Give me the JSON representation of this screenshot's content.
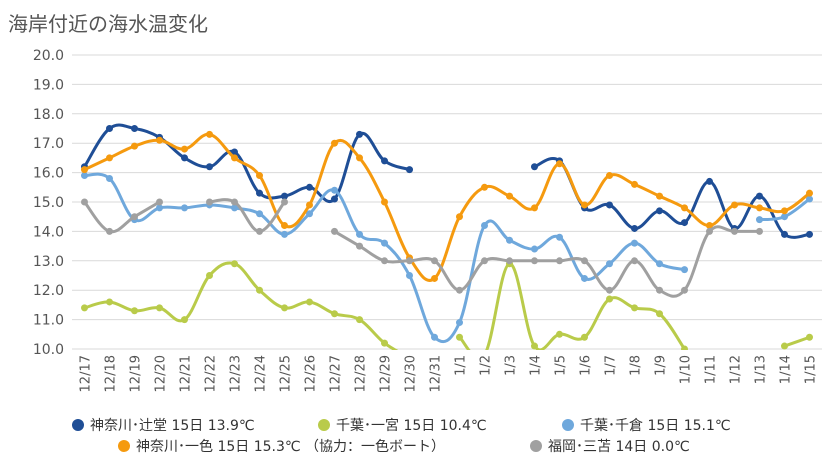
{
  "chart_data": {
    "type": "line",
    "title": "海岸付近の海水温変化",
    "xlabel": "",
    "ylabel": "",
    "ylim": [
      10.0,
      20.0
    ],
    "yticks": [
      "10.0",
      "11.0",
      "12.0",
      "13.0",
      "14.0",
      "15.0",
      "16.0",
      "17.0",
      "18.0",
      "19.0",
      "20.0"
    ],
    "grid": true,
    "legend_position": "bottom",
    "categories": [
      "12/17",
      "12/18",
      "12/19",
      "12/20",
      "12/21",
      "12/22",
      "12/23",
      "12/24",
      "12/25",
      "12/26",
      "12/27",
      "12/28",
      "12/29",
      "12/30",
      "12/31",
      "1/1",
      "1/2",
      "1/3",
      "1/4",
      "1/5",
      "1/6",
      "1/7",
      "1/8",
      "1/9",
      "1/10",
      "1/11",
      "1/12",
      "1/13",
      "1/14",
      "1/15"
    ],
    "series": [
      {
        "name": "神奈川･辻堂 15日 13.9℃",
        "color": "#1f4e96",
        "values": [
          16.2,
          17.5,
          17.5,
          17.2,
          16.5,
          16.2,
          16.7,
          15.3,
          15.2,
          15.5,
          15.1,
          17.3,
          16.4,
          16.1,
          null,
          null,
          null,
          null,
          16.2,
          16.4,
          14.8,
          14.9,
          14.1,
          14.7,
          14.3,
          15.7,
          14.1,
          15.2,
          13.9,
          13.9
        ]
      },
      {
        "name": "千葉･一宮 15日 10.4℃",
        "color": "#b9cb4a",
        "values": [
          11.4,
          11.6,
          11.3,
          11.4,
          11.0,
          12.5,
          12.9,
          12.0,
          11.4,
          11.6,
          11.2,
          11.0,
          10.2,
          9.7,
          null,
          10.4,
          9.8,
          12.9,
          10.1,
          10.5,
          10.4,
          11.7,
          11.4,
          11.2,
          10.0,
          null,
          null,
          null,
          10.1,
          10.4
        ]
      },
      {
        "name": "千葉･千倉 15日 15.1℃",
        "color": "#6fa8dc",
        "values": [
          15.9,
          15.8,
          14.4,
          14.8,
          14.8,
          14.9,
          14.8,
          14.6,
          13.9,
          14.6,
          15.4,
          13.9,
          13.6,
          12.5,
          10.4,
          10.9,
          14.2,
          13.7,
          13.4,
          13.8,
          12.4,
          12.9,
          13.6,
          12.9,
          12.7,
          null,
          null,
          14.4,
          14.5,
          15.1
        ]
      },
      {
        "name": "神奈川･一色 15日 15.3℃ （協力：一色ボート）",
        "color": "#f59a0f",
        "values": [
          16.1,
          16.5,
          16.9,
          17.1,
          16.8,
          17.3,
          16.5,
          15.9,
          14.2,
          14.9,
          17.0,
          16.5,
          15.0,
          13.1,
          12.4,
          14.5,
          15.5,
          15.2,
          14.8,
          16.3,
          14.9,
          15.9,
          15.6,
          15.2,
          14.8,
          14.2,
          14.9,
          14.8,
          14.7,
          15.3
        ]
      },
      {
        "name": "福岡･三苫 14日 0.0℃",
        "color": "#a0a0a0",
        "values": [
          15.0,
          14.0,
          14.5,
          15.0,
          null,
          15.0,
          15.0,
          14.0,
          15.0,
          null,
          14.0,
          13.5,
          13.0,
          13.0,
          13.0,
          12.0,
          13.0,
          13.0,
          13.0,
          13.0,
          13.0,
          12.0,
          13.0,
          12.0,
          12.0,
          14.0,
          14.0,
          14.0,
          null,
          null
        ]
      }
    ]
  }
}
